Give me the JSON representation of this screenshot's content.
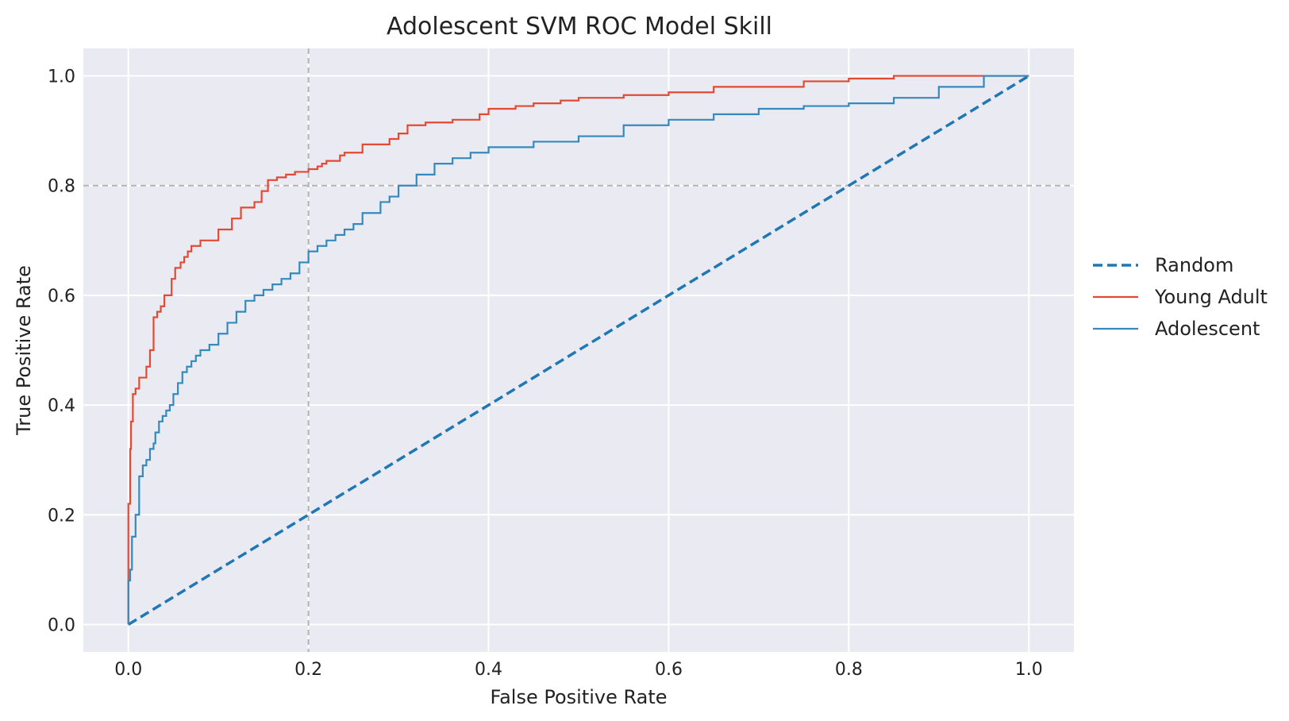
{
  "chart_data": {
    "type": "line",
    "title": "Adolescent SVM ROC Model Skill",
    "xlabel": "False Positive Rate",
    "ylabel": "True Positive Rate",
    "xlim": [
      -0.05,
      1.05
    ],
    "ylim": [
      -0.05,
      1.05
    ],
    "xticks": [
      0.0,
      0.2,
      0.4,
      0.6,
      0.8,
      1.0
    ],
    "xtick_labels": [
      "0.0",
      "0.2",
      "0.4",
      "0.6",
      "0.8",
      "1.0"
    ],
    "yticks": [
      0.0,
      0.2,
      0.4,
      0.6,
      0.8,
      1.0
    ],
    "ytick_labels": [
      "0.0",
      "0.2",
      "0.4",
      "0.6",
      "0.8",
      "1.0"
    ],
    "grid": true,
    "legend_position": "center-right-outside",
    "reference_lines": [
      {
        "orientation": "vertical",
        "value": 0.2,
        "style": "dashed",
        "color": "#b3b3b3"
      },
      {
        "orientation": "horizontal",
        "value": 0.8,
        "style": "dashed",
        "color": "#b3b3b3"
      }
    ],
    "series": [
      {
        "name": "Random",
        "color": "#1f77b4",
        "style": "dashed",
        "x": [
          0.0,
          1.0
        ],
        "y": [
          0.0,
          1.0
        ]
      },
      {
        "name": "Young Adult",
        "color": "#e24a33",
        "style": "solid",
        "step": true,
        "x": [
          0.0,
          0.0,
          0.002,
          0.003,
          0.005,
          0.008,
          0.01,
          0.012,
          0.02,
          0.024,
          0.028,
          0.032,
          0.036,
          0.04,
          0.048,
          0.052,
          0.058,
          0.062,
          0.066,
          0.07,
          0.075,
          0.08,
          0.088,
          0.1,
          0.115,
          0.125,
          0.14,
          0.148,
          0.155,
          0.165,
          0.175,
          0.185,
          0.2,
          0.21,
          0.215,
          0.22,
          0.235,
          0.24,
          0.26,
          0.29,
          0.3,
          0.31,
          0.33,
          0.36,
          0.39,
          0.4,
          0.43,
          0.45,
          0.48,
          0.5,
          0.52,
          0.55,
          0.6,
          0.65,
          0.7,
          0.75,
          0.76,
          0.8,
          0.85,
          0.9,
          1.0
        ],
        "y": [
          0.0,
          0.22,
          0.22,
          0.32,
          0.37,
          0.42,
          0.43,
          0.43,
          0.45,
          0.47,
          0.5,
          0.56,
          0.57,
          0.58,
          0.6,
          0.63,
          0.65,
          0.66,
          0.67,
          0.68,
          0.69,
          0.69,
          0.7,
          0.7,
          0.72,
          0.74,
          0.76,
          0.77,
          0.79,
          0.81,
          0.815,
          0.82,
          0.825,
          0.83,
          0.835,
          0.84,
          0.845,
          0.855,
          0.86,
          0.875,
          0.885,
          0.895,
          0.91,
          0.915,
          0.92,
          0.93,
          0.94,
          0.945,
          0.95,
          0.955,
          0.96,
          0.96,
          0.965,
          0.97,
          0.98,
          0.98,
          0.99,
          0.99,
          0.995,
          1.0,
          1.0
        ]
      },
      {
        "name": "Adolescent",
        "color": "#348abd",
        "style": "solid",
        "step": true,
        "x": [
          0.0,
          0.002,
          0.004,
          0.008,
          0.012,
          0.016,
          0.02,
          0.024,
          0.028,
          0.03,
          0.034,
          0.038,
          0.042,
          0.046,
          0.05,
          0.055,
          0.06,
          0.065,
          0.07,
          0.075,
          0.08,
          0.09,
          0.1,
          0.11,
          0.12,
          0.13,
          0.14,
          0.15,
          0.16,
          0.17,
          0.18,
          0.19,
          0.2,
          0.21,
          0.22,
          0.23,
          0.24,
          0.25,
          0.26,
          0.28,
          0.29,
          0.3,
          0.32,
          0.34,
          0.36,
          0.38,
          0.4,
          0.45,
          0.5,
          0.55,
          0.6,
          0.65,
          0.7,
          0.75,
          0.8,
          0.85,
          0.9,
          0.95,
          1.0
        ],
        "y": [
          0.0,
          0.08,
          0.1,
          0.16,
          0.2,
          0.27,
          0.29,
          0.3,
          0.32,
          0.33,
          0.35,
          0.37,
          0.38,
          0.39,
          0.4,
          0.42,
          0.44,
          0.46,
          0.47,
          0.48,
          0.49,
          0.5,
          0.51,
          0.53,
          0.55,
          0.57,
          0.59,
          0.6,
          0.61,
          0.62,
          0.63,
          0.64,
          0.66,
          0.68,
          0.69,
          0.7,
          0.71,
          0.72,
          0.73,
          0.75,
          0.77,
          0.78,
          0.8,
          0.82,
          0.84,
          0.85,
          0.86,
          0.87,
          0.88,
          0.89,
          0.91,
          0.92,
          0.93,
          0.94,
          0.945,
          0.95,
          0.96,
          0.98,
          1.0
        ]
      }
    ]
  }
}
